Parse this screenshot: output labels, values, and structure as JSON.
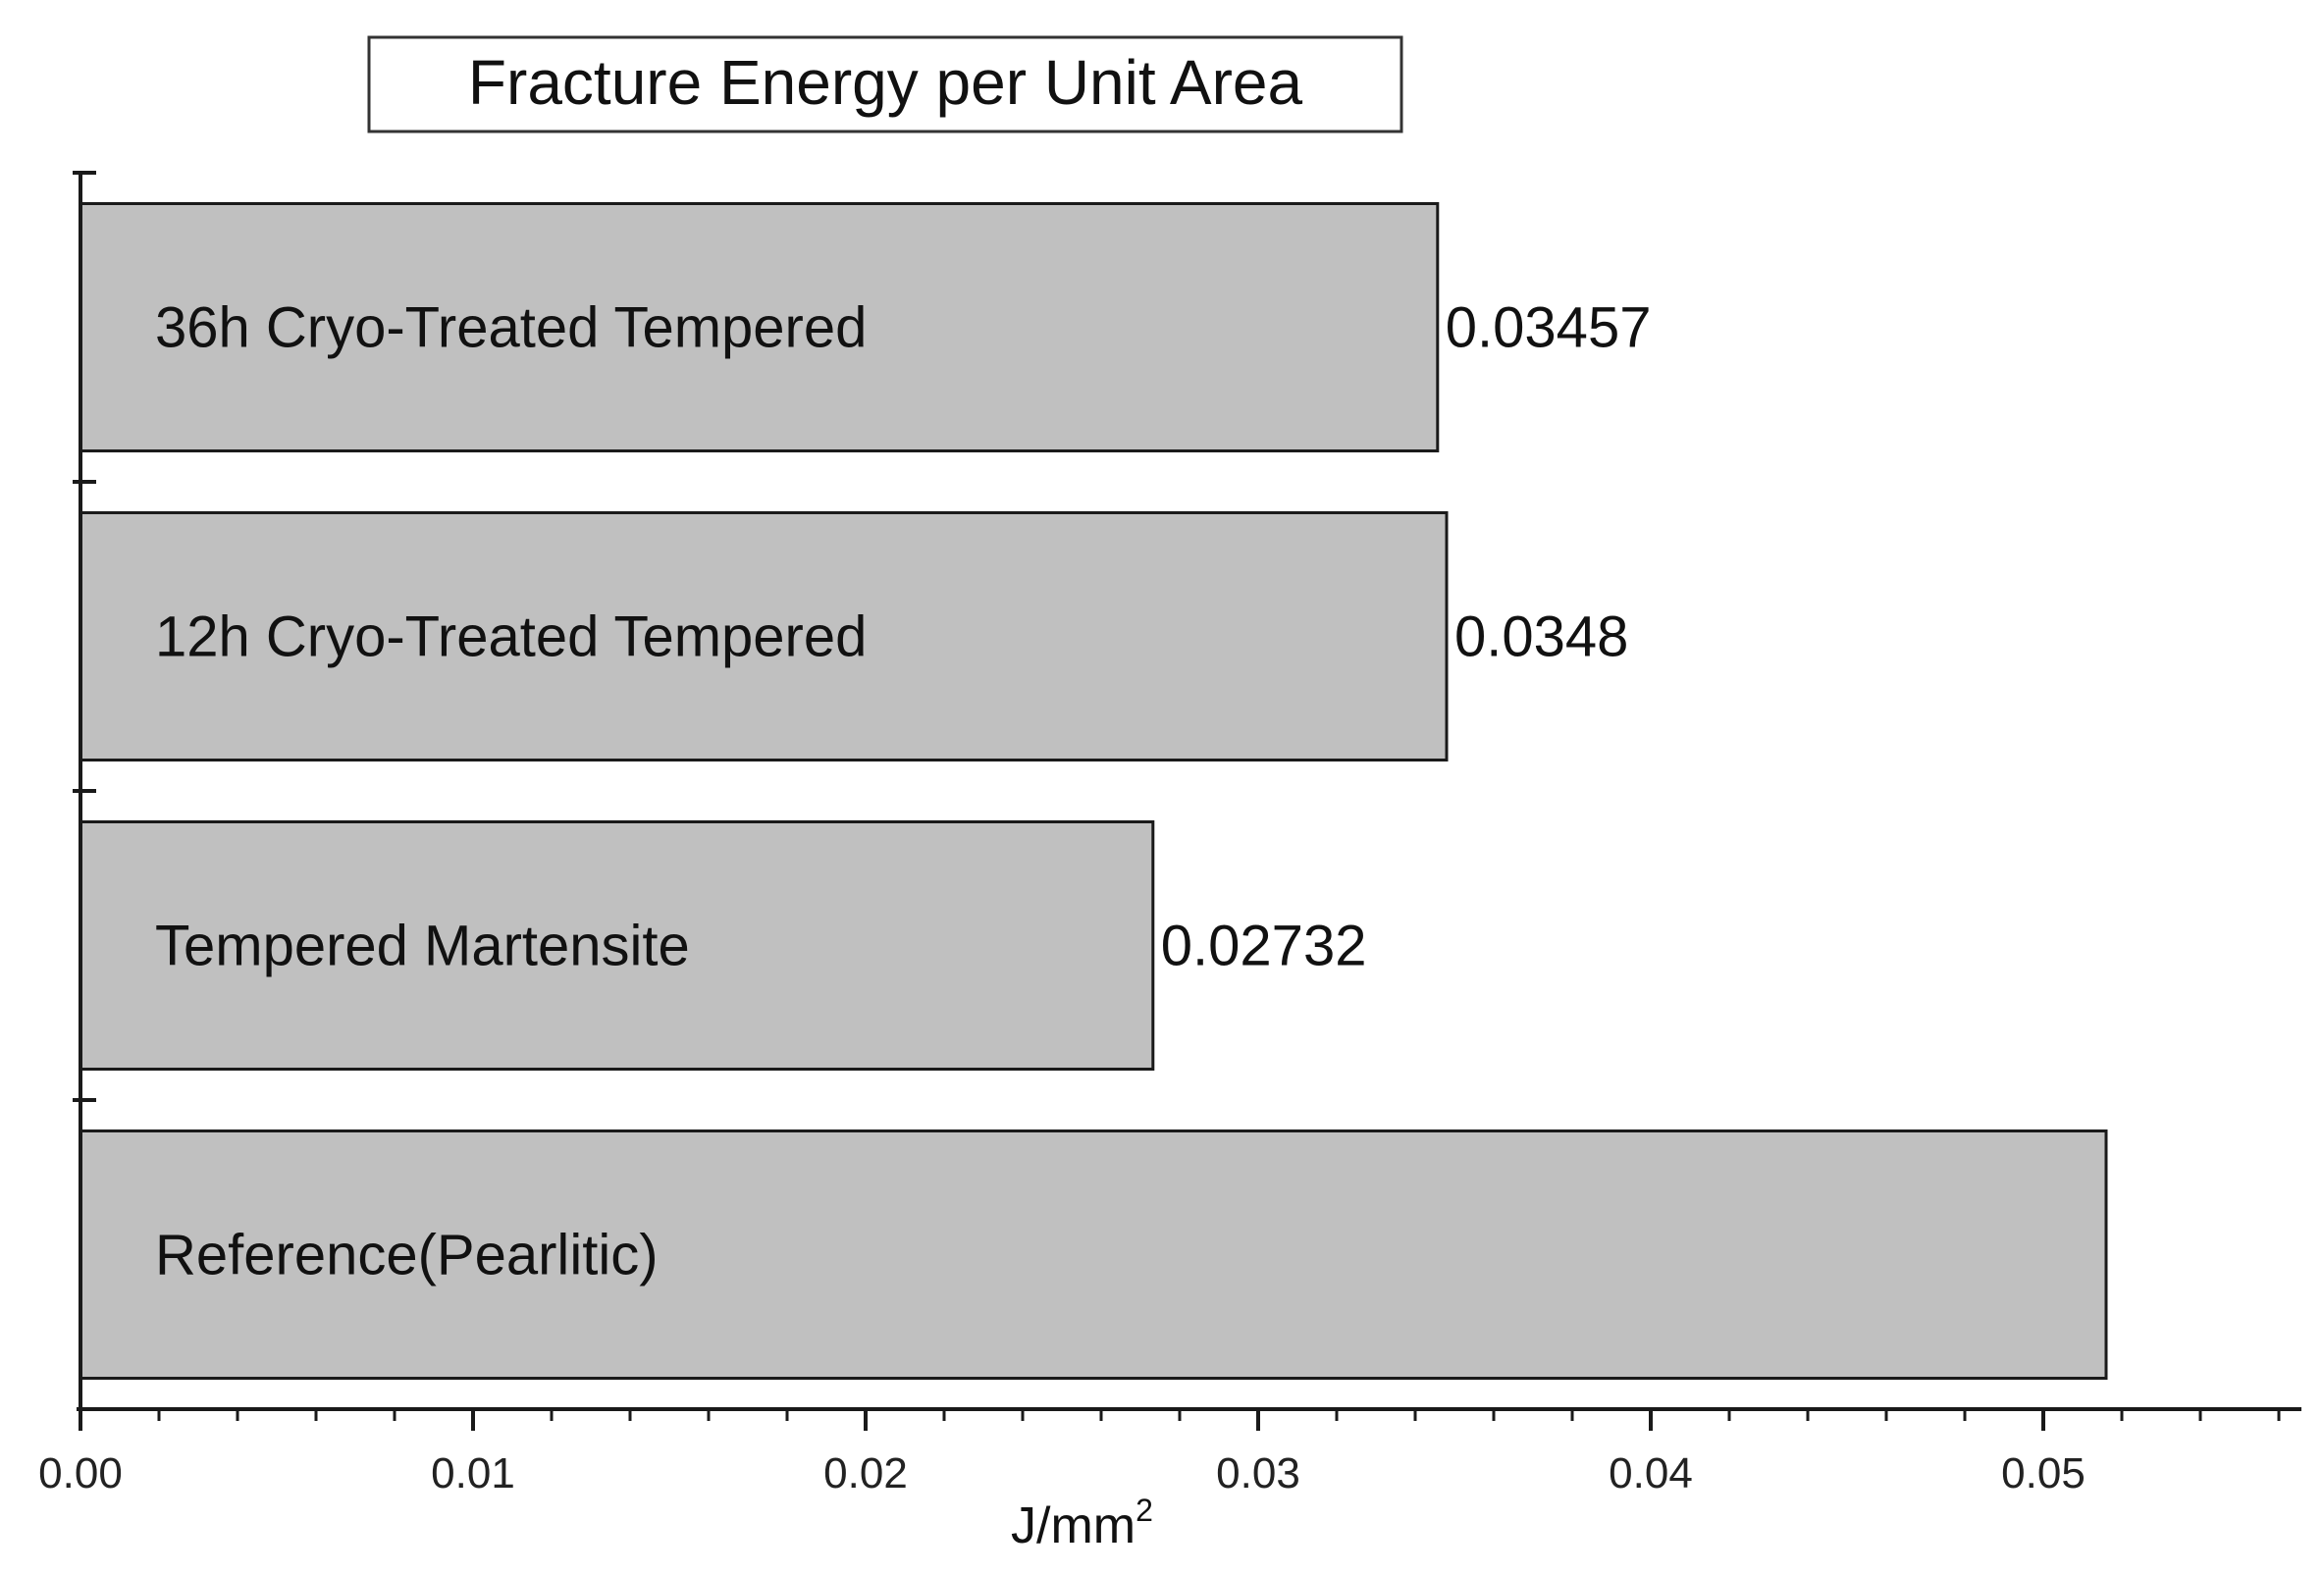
{
  "chart_data": {
    "type": "bar",
    "orientation": "horizontal",
    "title": "Fracture Energy per Unit Area",
    "xlabel": "J/mm",
    "xlabel_superscript": "2",
    "ylabel": "",
    "categories": [
      "36h Cryo-Treated Tempered",
      "12h Cryo-Treated Tempered",
      "Tempered Martensite",
      "Reference(Pearlitic)"
    ],
    "values": [
      0.03457,
      0.0348,
      0.02732,
      0.0516
    ],
    "value_labels": [
      "0.03457",
      "0.0348",
      "0.02732",
      ""
    ],
    "xlim": [
      0.0,
      0.056
    ],
    "xticks": [
      0.0,
      0.01,
      0.02,
      0.03,
      0.04,
      0.05
    ],
    "xtick_labels": [
      "0.00",
      "0.01",
      "0.02",
      "0.03",
      "0.04",
      "0.05"
    ],
    "minor_tick_step": 0.002,
    "grid": false,
    "legend": "none",
    "colors": {
      "bar_fill": "#c0c0c0",
      "bar_stroke": "#1a1a1a",
      "axis": "#1a1a1a"
    }
  }
}
